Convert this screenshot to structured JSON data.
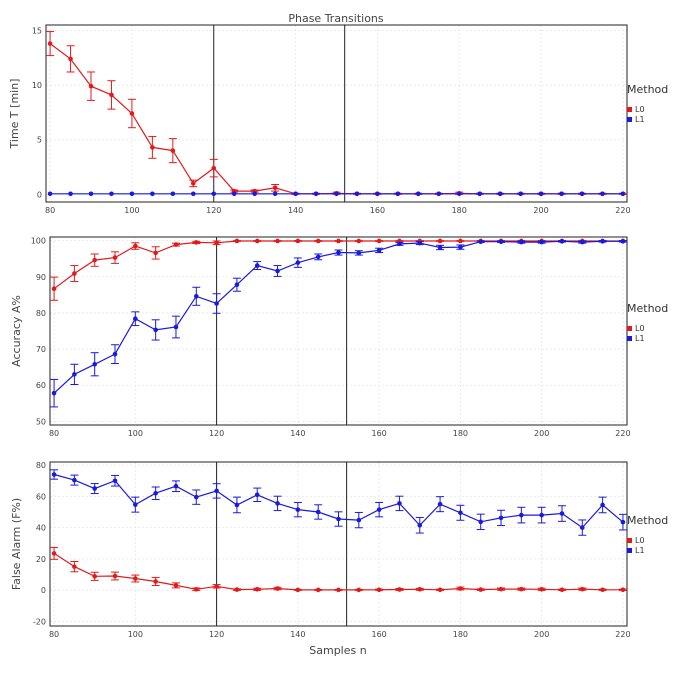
{
  "figure": {
    "title": "Phase Transitions",
    "xlabel": "Samples n"
  },
  "chart_data": [
    {
      "type": "line",
      "title": "Phase Transitions",
      "xlabel": "",
      "ylabel": "Time T [min]",
      "xlim": [
        79,
        221
      ],
      "ylim": [
        -0.7,
        15.5
      ],
      "yticks": [
        0,
        5,
        10,
        15
      ],
      "xticks": [
        80,
        100,
        120,
        140,
        160,
        180,
        200,
        220
      ],
      "vlines": [
        120,
        152
      ],
      "legend": {
        "title": "Method",
        "position": "right"
      },
      "x": [
        80,
        85,
        90,
        95,
        100,
        105,
        110,
        115,
        120,
        125,
        130,
        135,
        140,
        145,
        150,
        155,
        160,
        165,
        170,
        175,
        180,
        185,
        190,
        195,
        200,
        205,
        210,
        215,
        220
      ],
      "series": [
        {
          "name": "L0",
          "color": "#e31a1c",
          "values": [
            13.8,
            12.4,
            9.9,
            9.1,
            7.4,
            4.3,
            4.0,
            1.0,
            2.4,
            0.3,
            0.3,
            0.6,
            0.05,
            0.05,
            0.1,
            0.05,
            0.05,
            0.05,
            0.05,
            0.05,
            0.1,
            0.05,
            0.05,
            0.05,
            0.05,
            0.05,
            0.05,
            0.05,
            0.05
          ],
          "errors": [
            1.1,
            1.2,
            1.3,
            1.3,
            1.3,
            1.0,
            1.1,
            0.3,
            0.8,
            0.1,
            0.1,
            0.3,
            0.05,
            0.05,
            0.1,
            0.05,
            0.05,
            0.05,
            0.05,
            0.05,
            0.1,
            0.05,
            0.05,
            0.05,
            0.05,
            0.05,
            0.05,
            0.05,
            0.05
          ]
        },
        {
          "name": "L1",
          "color": "#1a1adf",
          "values": [
            0.05,
            0.05,
            0.05,
            0.05,
            0.05,
            0.05,
            0.05,
            0.05,
            0.05,
            0.05,
            0.05,
            0.05,
            0.05,
            0.05,
            0.05,
            0.05,
            0.05,
            0.05,
            0.05,
            0.05,
            0.05,
            0.05,
            0.05,
            0.05,
            0.05,
            0.05,
            0.05,
            0.05,
            0.05
          ],
          "errors": [
            0,
            0,
            0,
            0,
            0,
            0,
            0,
            0,
            0,
            0,
            0,
            0,
            0,
            0,
            0,
            0,
            0,
            0,
            0,
            0,
            0,
            0,
            0,
            0,
            0,
            0,
            0,
            0,
            0
          ]
        }
      ]
    },
    {
      "type": "line",
      "xlabel": "",
      "ylabel": "Accuracy A%",
      "xlim": [
        79,
        221
      ],
      "ylim": [
        49,
        101
      ],
      "yticks": [
        50,
        60,
        70,
        80,
        90,
        100
      ],
      "xticks": [
        80,
        100,
        120,
        140,
        160,
        180,
        200,
        220
      ],
      "vlines": [
        120,
        152
      ],
      "legend": {
        "title": "Method",
        "position": "right"
      },
      "x": [
        80,
        85,
        90,
        95,
        100,
        105,
        110,
        115,
        120,
        125,
        130,
        135,
        140,
        145,
        150,
        155,
        160,
        165,
        170,
        175,
        180,
        185,
        190,
        195,
        200,
        205,
        210,
        215,
        220
      ],
      "series": [
        {
          "name": "L0",
          "color": "#e31a1c",
          "values": [
            86.7,
            90.9,
            94.6,
            95.3,
            98.5,
            96.6,
            98.9,
            99.5,
            99.4,
            99.9,
            99.9,
            99.9,
            99.9,
            99.9,
            99.9,
            99.9,
            99.9,
            99.9,
            99.9,
            99.9,
            99.9,
            99.9,
            99.9,
            99.9,
            99.9,
            99.9,
            99.9,
            99.9,
            99.9
          ],
          "errors": [
            3.2,
            2.2,
            1.7,
            1.6,
            0.9,
            1.7,
            0.4,
            0.3,
            0.5,
            0.1,
            0.1,
            0.1,
            0.1,
            0.1,
            0.1,
            0.1,
            0.1,
            0.1,
            0.1,
            0.1,
            0.1,
            0.1,
            0.1,
            0.1,
            0.1,
            0.1,
            0.1,
            0.1,
            0.1
          ]
        },
        {
          "name": "L1",
          "color": "#1a1adf",
          "values": [
            57.8,
            63.0,
            65.8,
            68.6,
            78.4,
            75.3,
            76.1,
            84.6,
            82.6,
            87.8,
            93.1,
            91.6,
            93.9,
            95.5,
            96.7,
            96.6,
            97.3,
            99.1,
            99.3,
            98.1,
            98.2,
            99.7,
            99.7,
            99.6,
            99.6,
            99.8,
            99.6,
            99.8,
            99.8
          ],
          "errors": [
            3.8,
            2.8,
            3.2,
            2.6,
            1.9,
            2.8,
            3.0,
            2.5,
            2.7,
            1.8,
            1.1,
            1.5,
            1.3,
            0.8,
            0.7,
            0.6,
            0.6,
            0.4,
            0.4,
            0.6,
            0.6,
            0.2,
            0.2,
            0.3,
            0.3,
            0.2,
            0.3,
            0.2,
            0.2
          ]
        }
      ]
    },
    {
      "type": "line",
      "xlabel": "Samples n",
      "ylabel": "False Alarm (F%)",
      "xlim": [
        79,
        221
      ],
      "ylim": [
        -23,
        82
      ],
      "yticks": [
        -20,
        0,
        20,
        40,
        60,
        80
      ],
      "xticks": [
        80,
        100,
        120,
        140,
        160,
        180,
        200,
        220
      ],
      "vlines": [
        120,
        152
      ],
      "legend": {
        "title": "Method",
        "position": "right"
      },
      "x": [
        80,
        85,
        90,
        95,
        100,
        105,
        110,
        115,
        120,
        125,
        130,
        135,
        140,
        145,
        150,
        155,
        160,
        165,
        170,
        175,
        180,
        185,
        190,
        195,
        200,
        205,
        210,
        215,
        220
      ],
      "series": [
        {
          "name": "L0",
          "color": "#e31a1c",
          "values": [
            23.5,
            15.0,
            8.8,
            9.0,
            7.4,
            5.5,
            3.0,
            0.5,
            2.4,
            0.3,
            0.5,
            1.0,
            0.1,
            0.1,
            0.1,
            0.1,
            0.2,
            0.4,
            0.5,
            0.2,
            1.0,
            0.3,
            0.6,
            0.6,
            0.5,
            0.2,
            0.6,
            0.2,
            0.2
          ],
          "errors": [
            3.8,
            3.3,
            2.6,
            2.5,
            2.2,
            2.6,
            1.6,
            0.8,
            1.1,
            0.5,
            0.7,
            0.8,
            0.3,
            0.3,
            0.3,
            0.3,
            0.4,
            0.6,
            0.6,
            0.4,
            0.9,
            0.5,
            0.7,
            0.7,
            0.7,
            0.4,
            0.7,
            0.4,
            0.4
          ]
        },
        {
          "name": "L1",
          "color": "#1a1adf",
          "values": [
            74.0,
            70.4,
            65.0,
            70.0,
            54.7,
            62.0,
            66.5,
            59.5,
            63.5,
            54.5,
            61.0,
            55.5,
            51.5,
            50.0,
            45.5,
            44.8,
            51.5,
            55.5,
            41.5,
            55.0,
            49.5,
            43.7,
            46.2,
            48.0,
            48.0,
            49.0,
            40.0,
            54.5,
            43.5
          ],
          "errors": [
            3.0,
            3.2,
            3.2,
            3.4,
            4.8,
            4.0,
            3.4,
            4.6,
            4.6,
            5.0,
            4.3,
            4.6,
            4.6,
            4.6,
            4.6,
            4.9,
            4.6,
            4.6,
            5.0,
            4.8,
            4.8,
            4.9,
            4.9,
            5.0,
            5.0,
            5.0,
            4.9,
            5.0,
            5.0
          ]
        }
      ]
    }
  ]
}
